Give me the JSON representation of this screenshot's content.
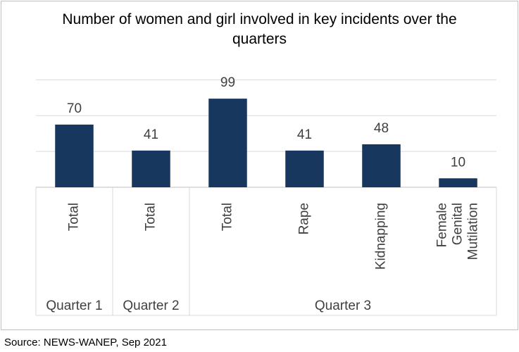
{
  "chart_data": {
    "type": "bar",
    "title": "Number of women and girl involved in key incidents over the quarters",
    "source": "Source: NEWS-WANEP, Sep 2021",
    "groups": [
      {
        "name": "Quarter 1",
        "categories": [
          "Total"
        ],
        "values": [
          70
        ]
      },
      {
        "name": "Quarter 2",
        "categories": [
          "Total"
        ],
        "values": [
          41
        ]
      },
      {
        "name": "Quarter 3",
        "categories": [
          "Total",
          "Rape",
          "Kidnapping",
          "Female Genital Mutilation"
        ],
        "values": [
          99,
          41,
          48,
          10
        ]
      }
    ],
    "color": "#17375e",
    "ylim": [
      0,
      140
    ],
    "yticks": [
      0,
      40,
      80,
      120
    ],
    "grid": true
  }
}
